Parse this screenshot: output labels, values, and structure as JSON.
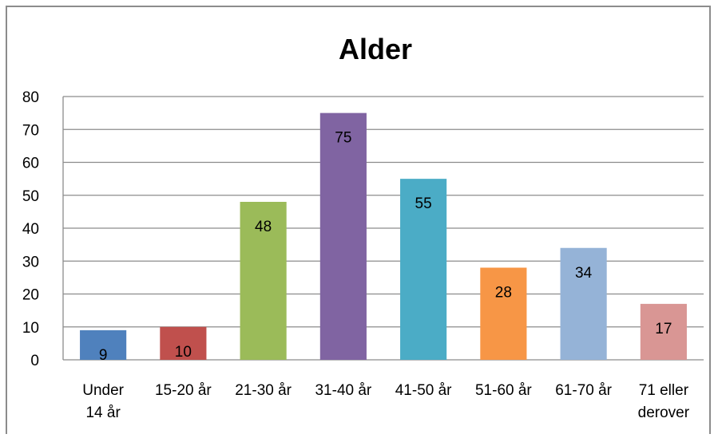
{
  "chart_data": {
    "type": "bar",
    "title": "Alder",
    "categories": [
      [
        "Under",
        "14 år"
      ],
      [
        "15-20 år"
      ],
      [
        "21-30 år"
      ],
      [
        "31-40 år"
      ],
      [
        "41-50 år"
      ],
      [
        "51-60 år"
      ],
      [
        "61-70 år"
      ],
      [
        "71 eller",
        "derover"
      ]
    ],
    "values": [
      9,
      10,
      48,
      75,
      55,
      28,
      34,
      17
    ],
    "colors": [
      "#4f81bd",
      "#c0504d",
      "#9bbb59",
      "#8064a2",
      "#4bacc6",
      "#f79646",
      "#95b3d7",
      "#d99694"
    ],
    "ylim": [
      0,
      80
    ],
    "yticks": [
      0,
      10,
      20,
      30,
      40,
      50,
      60,
      70,
      80
    ],
    "grid": true,
    "legend": "none",
    "data_labels": true
  }
}
